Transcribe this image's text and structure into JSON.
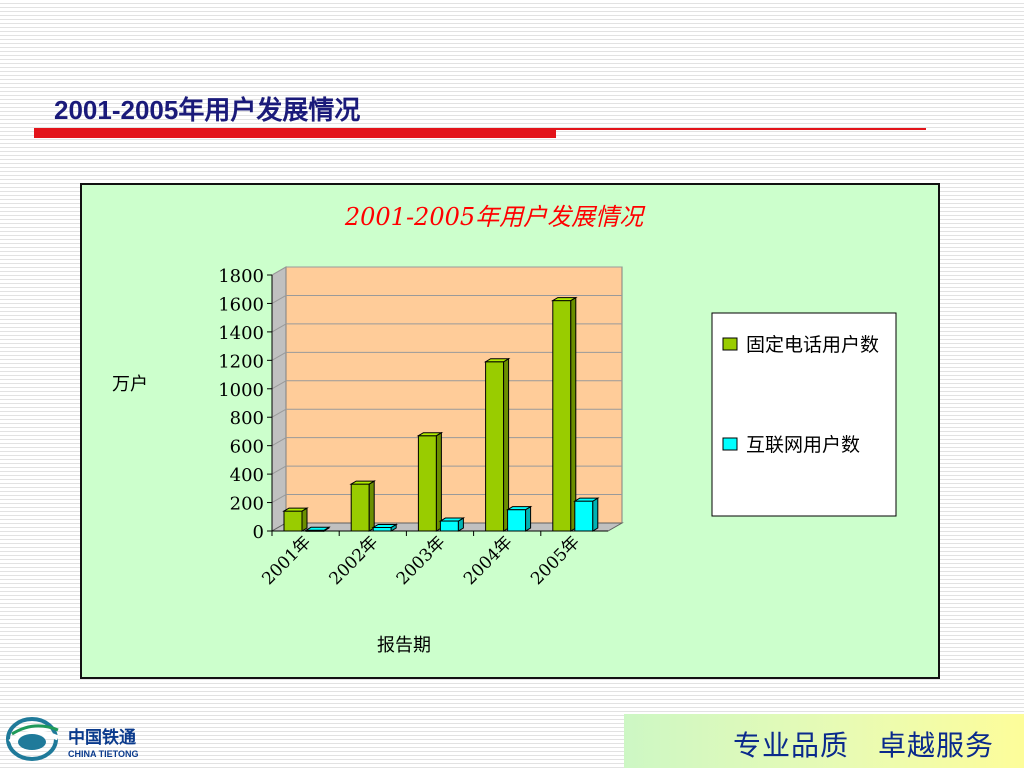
{
  "slide": {
    "title": "2001-2005年用户发展情况",
    "slogan": "专业品质　卓越服务",
    "logo_name": "中国铁通",
    "logo_english": "CHINA TIETONG"
  },
  "colors": {
    "title": "#1a1a7a",
    "accent_red": "#e3141b",
    "panel_bg": "#ccffcc",
    "plot_bg": "#ffcc99",
    "series_fixed": "#99cc00",
    "series_internet": "#00ffff",
    "chart_title": "#ff0000",
    "slogan": "#0a2a8c"
  },
  "chart_data": {
    "type": "bar",
    "title": "2001-2005年用户发展情况",
    "xlabel": "报告期",
    "ylabel": "万户",
    "ylim": [
      0,
      1800
    ],
    "y_ticks": [
      0,
      200,
      400,
      600,
      800,
      1000,
      1200,
      1400,
      1600,
      1800
    ],
    "categories": [
      "2001年",
      "2002年",
      "2003年",
      "2004年",
      "2005年"
    ],
    "series": [
      {
        "name": "固定电话用户数",
        "values": [
          140,
          330,
          670,
          1190,
          1620
        ],
        "color": "#99cc00"
      },
      {
        "name": "互联网用户数",
        "values": [
          5,
          25,
          70,
          150,
          210
        ],
        "color": "#00ffff"
      }
    ],
    "grid": true,
    "legend_position": "right",
    "style": "3d"
  }
}
